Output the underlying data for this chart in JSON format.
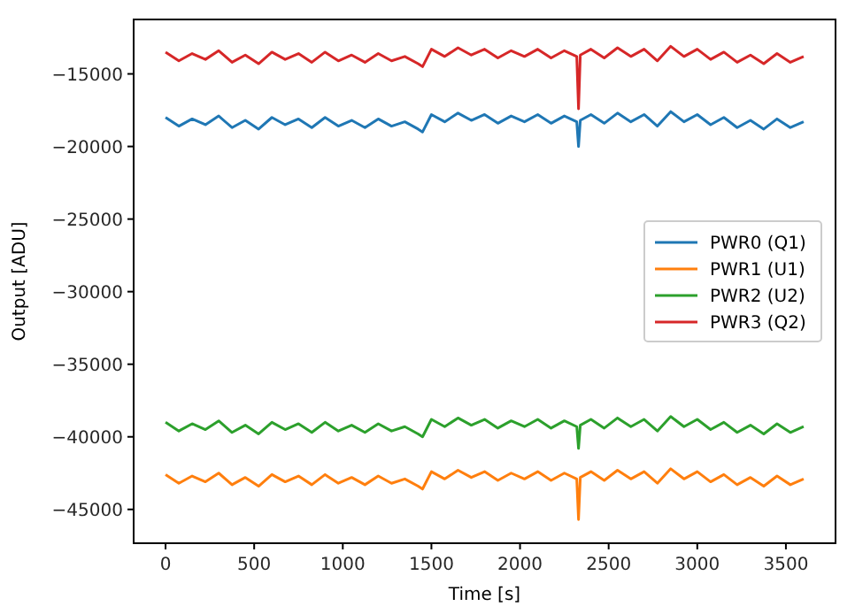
{
  "chart_data": {
    "type": "line",
    "xlabel": "Time [s]",
    "ylabel": "Output [ADU]",
    "x": [
      0,
      75,
      150,
      225,
      300,
      375,
      450,
      525,
      600,
      675,
      750,
      825,
      900,
      975,
      1050,
      1125,
      1200,
      1275,
      1350,
      1425,
      1450,
      1500,
      1575,
      1650,
      1725,
      1800,
      1875,
      1950,
      2025,
      2100,
      2175,
      2250,
      2320,
      2330,
      2340,
      2400,
      2475,
      2550,
      2625,
      2700,
      2775,
      2850,
      2925,
      3000,
      3075,
      3150,
      3225,
      3300,
      3375,
      3450,
      3525,
      3600
    ],
    "series": [
      {
        "name": "PWR0 (Q1)",
        "color": "#1f77b4",
        "values": [
          -18000,
          -18600,
          -18100,
          -18500,
          -17900,
          -18700,
          -18200,
          -18800,
          -18000,
          -18500,
          -18100,
          -18700,
          -18000,
          -18600,
          -18200,
          -18700,
          -18100,
          -18600,
          -18300,
          -18800,
          -19000,
          -17800,
          -18300,
          -17700,
          -18200,
          -17800,
          -18400,
          -17900,
          -18300,
          -17800,
          -18400,
          -17900,
          -18300,
          -20000,
          -18200,
          -17800,
          -18400,
          -17700,
          -18300,
          -17800,
          -18600,
          -17600,
          -18300,
          -17800,
          -18500,
          -18000,
          -18700,
          -18200,
          -18800,
          -18100,
          -18700,
          -18300
        ]
      },
      {
        "name": "PWR1 (U1)",
        "color": "#ff7f0e",
        "values": [
          -42600,
          -43200,
          -42700,
          -43100,
          -42500,
          -43300,
          -42800,
          -43400,
          -42600,
          -43100,
          -42700,
          -43300,
          -42600,
          -43200,
          -42800,
          -43300,
          -42700,
          -43200,
          -42900,
          -43400,
          -43600,
          -42400,
          -42900,
          -42300,
          -42800,
          -42400,
          -43000,
          -42500,
          -42900,
          -42400,
          -43000,
          -42500,
          -42900,
          -45700,
          -42800,
          -42400,
          -43000,
          -42300,
          -42900,
          -42400,
          -43200,
          -42200,
          -42900,
          -42400,
          -43100,
          -42600,
          -43300,
          -42800,
          -43400,
          -42700,
          -43300,
          -42900
        ]
      },
      {
        "name": "PWR2 (U2)",
        "color": "#2ca02c",
        "values": [
          -39000,
          -39600,
          -39100,
          -39500,
          -38900,
          -39700,
          -39200,
          -39800,
          -39000,
          -39500,
          -39100,
          -39700,
          -39000,
          -39600,
          -39200,
          -39700,
          -39100,
          -39600,
          -39300,
          -39800,
          -40000,
          -38800,
          -39300,
          -38700,
          -39200,
          -38800,
          -39400,
          -38900,
          -39300,
          -38800,
          -39400,
          -38900,
          -39300,
          -40800,
          -39200,
          -38800,
          -39400,
          -38700,
          -39300,
          -38800,
          -39600,
          -38600,
          -39300,
          -38800,
          -39500,
          -39000,
          -39700,
          -39200,
          -39800,
          -39100,
          -39700,
          -39300
        ]
      },
      {
        "name": "PWR3 (Q2)",
        "color": "#d62728",
        "values": [
          -13500,
          -14100,
          -13600,
          -14000,
          -13400,
          -14200,
          -13700,
          -14300,
          -13500,
          -14000,
          -13600,
          -14200,
          -13500,
          -14100,
          -13700,
          -14200,
          -13600,
          -14100,
          -13800,
          -14300,
          -14500,
          -13300,
          -13800,
          -13200,
          -13700,
          -13300,
          -13900,
          -13400,
          -13800,
          -13300,
          -13900,
          -13400,
          -13800,
          -17400,
          -13700,
          -13300,
          -13900,
          -13200,
          -13800,
          -13300,
          -14100,
          -13100,
          -13800,
          -13300,
          -14000,
          -13500,
          -14200,
          -13700,
          -14300,
          -13600,
          -14200,
          -13800
        ]
      }
    ],
    "xlim": [
      -180,
      3780
    ],
    "xticks": [
      0,
      500,
      1000,
      1500,
      2000,
      2500,
      3000,
      3500
    ],
    "ylim": [
      -47330,
      -11250
    ],
    "yticks": [
      -45000,
      -40000,
      -35000,
      -30000,
      -25000,
      -20000,
      -15000
    ],
    "legend": "center right",
    "grid": false,
    "line_style": "solid",
    "marker": "none"
  }
}
